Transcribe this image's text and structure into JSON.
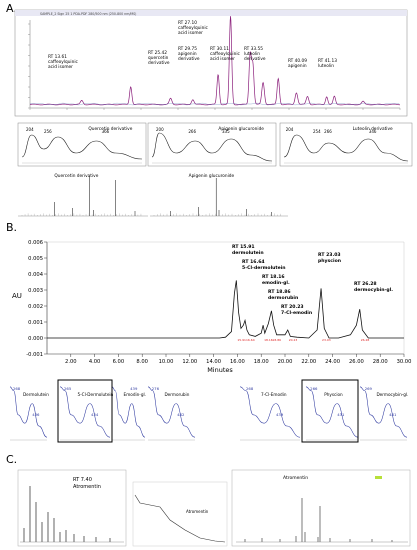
{
  "panels": {
    "A": {
      "label": "A.",
      "peaks": [
        {
          "rt": 13.61,
          "lines": [
            "RT 13.61",
            "caffeoylquinic",
            "acid isomer"
          ]
        },
        {
          "rt": 25.42,
          "lines": [
            "RT 25.42",
            "quercetin",
            "derivative"
          ]
        },
        {
          "rt": 27.1,
          "lines": [
            "RT 27.10",
            "caffeoylquinic",
            "acid isomer"
          ]
        },
        {
          "rt": 29.75,
          "lines": [
            "RT 29.75",
            "apigenin",
            "derivative"
          ]
        },
        {
          "rt": 30.11,
          "lines": [
            "RT 30.11",
            "caffeoylquinic",
            "acid isomer"
          ]
        },
        {
          "rt": 33.55,
          "lines": [
            "RT 33.55",
            "luteolin",
            "derivative"
          ]
        },
        {
          "rt": 40.09,
          "lines": [
            "RT 40.09",
            "apigenin"
          ]
        },
        {
          "rt": 41.13,
          "lines": [
            "RT 41.13",
            "luteolin"
          ]
        }
      ],
      "uv_spectra": [
        {
          "name": "Quercetin derivative",
          "peaks": [
            "204",
            "256",
            "366"
          ]
        },
        {
          "name": "Apigenin glucuronide",
          "peaks": [
            "200",
            "266",
            "335"
          ]
        },
        {
          "name": "Luteolin derivative",
          "peaks": [
            "204",
            "254",
            "266",
            "346"
          ]
        }
      ],
      "ms_spectra": [
        "Quercetin derivative",
        "Apigenin glucuronide"
      ]
    },
    "B": {
      "label": "B.",
      "ylabel": "AU",
      "xlabel": "Minutes",
      "peaks": [
        {
          "rt": 15.91,
          "lines": [
            "RT 15.91",
            "dermolutein"
          ]
        },
        {
          "rt": 16.64,
          "lines": [
            "RT 16.64",
            "5-Cl-dermolutein"
          ]
        },
        {
          "rt": 18.16,
          "lines": [
            "RT 18.16",
            "emodin-gl."
          ]
        },
        {
          "rt": 18.86,
          "lines": [
            "RT 18.86",
            "dermorubin"
          ]
        },
        {
          "rt": 20.23,
          "lines": [
            "RT 20.23",
            "7-Cl-emodin"
          ]
        },
        {
          "rt": 23.03,
          "lines": [
            "RT 23.03",
            "physcion"
          ]
        },
        {
          "rt": 26.28,
          "lines": [
            "RT 26.28",
            "dermocybin-gl."
          ]
        }
      ],
      "uv_spectra": [
        {
          "name": "Dermolutein",
          "peaks": [
            "268",
            "436"
          ]
        },
        {
          "name": "5-Cl-Dermolutein",
          "peaks": [
            "265",
            "434"
          ]
        },
        {
          "name": "Emodin-gl.",
          "peaks": [
            "439"
          ]
        },
        {
          "name": "Dermorubin",
          "peaks": [
            "276",
            "482"
          ]
        },
        {
          "name": "7-Cl-Emodin",
          "peaks": [
            "268",
            "439"
          ]
        },
        {
          "name": "Physcion",
          "peaks": [
            "266",
            "431"
          ]
        },
        {
          "name": "Dermocybin-gl.",
          "peaks": [
            "269",
            "481"
          ]
        }
      ]
    },
    "C": {
      "label": "C.",
      "peak_lines": [
        "RT 7.40",
        "Atromentin"
      ],
      "uv_name": "Atromentin",
      "ms_name": "Atromentin"
    }
  },
  "chart_data": {
    "type": "line",
    "title": "",
    "xlabel": "Minutes",
    "ylabel": "AU",
    "xlim": [
      0,
      30
    ],
    "ylim": [
      -0.001,
      0.006
    ],
    "xticks": [
      "2.00",
      "4.00",
      "6.00",
      "8.00",
      "10.00",
      "12.00",
      "14.00",
      "16.00",
      "18.00",
      "20.00",
      "22.00",
      "24.00",
      "26.00",
      "28.00",
      "30.00"
    ],
    "yticks": [
      "-0.001",
      "0.000",
      "0.001",
      "0.002",
      "0.003",
      "0.004",
      "0.005",
      "0.006"
    ],
    "series": [
      {
        "x": [
          0,
          14.5,
          15.0,
          15.5,
          15.75,
          15.91,
          16.1,
          16.3,
          16.5,
          16.64,
          16.8,
          17.0,
          17.5,
          18.0,
          18.16,
          18.3,
          18.6,
          18.86,
          19.05,
          19.3,
          20.0,
          20.23,
          20.45,
          21.0,
          22.0,
          22.7,
          23.03,
          23.3,
          23.7,
          24.5,
          25.5,
          26.0,
          26.28,
          26.5,
          27.0,
          28.0,
          30.0
        ],
        "y": [
          0.0,
          0.0,
          5e-05,
          0.0004,
          0.0028,
          0.0036,
          0.0016,
          0.0006,
          0.0008,
          0.0011,
          0.0005,
          0.0002,
          0.0001,
          0.0003,
          0.0008,
          0.0003,
          0.0009,
          0.0017,
          0.0008,
          0.0002,
          0.0002,
          0.0005,
          0.0001,
          5e-05,
          0.0,
          0.0005,
          0.0031,
          0.0006,
          0.0,
          0.0,
          0.0002,
          0.0008,
          0.0018,
          0.0005,
          0.0,
          0.0,
          0.0
        ]
      }
    ]
  },
  "header_text": "SAMPLE_2  Sign 25 1 PDA-PDF 280/500 nm (250-800 nm/MS)"
}
